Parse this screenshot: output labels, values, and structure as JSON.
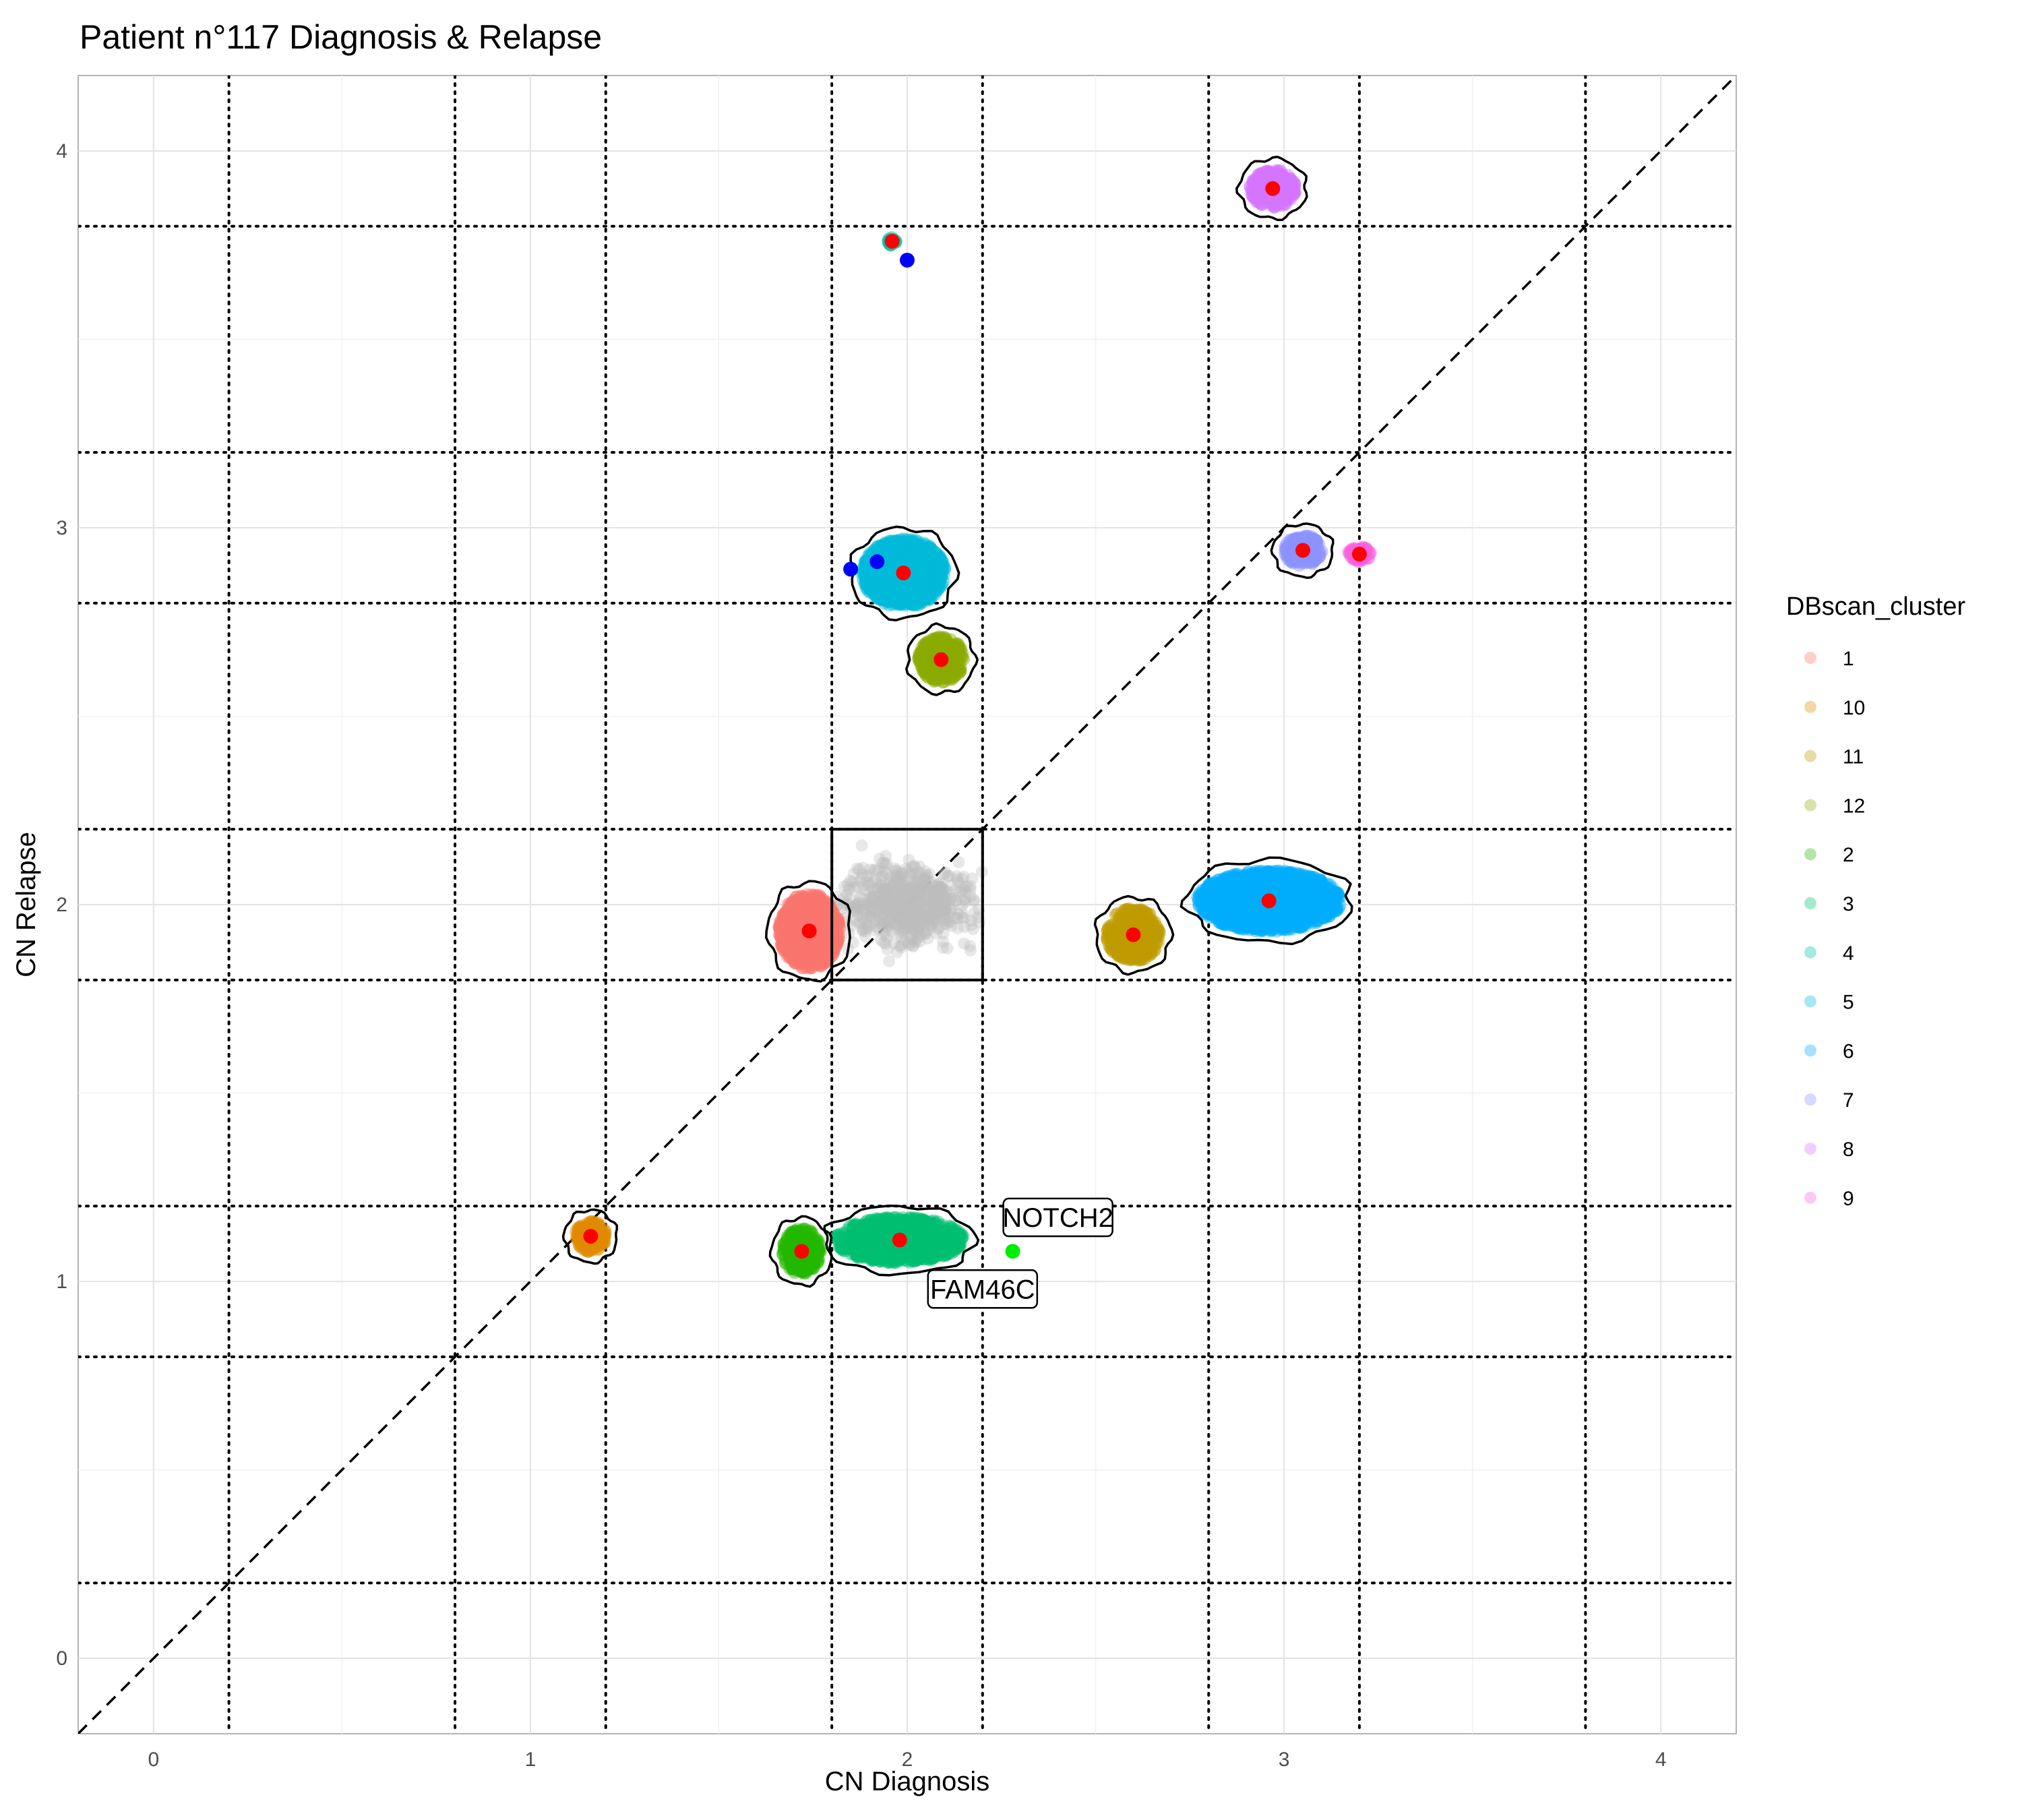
{
  "chart_data": {
    "type": "scatter",
    "title": "Patient n°117 Diagnosis & Relapse",
    "xlabel": "CN Diagnosis",
    "ylabel": "CN Relapse",
    "xlim": [
      -0.2,
      4.2
    ],
    "ylim": [
      -0.2,
      4.2
    ],
    "x_ticks": [
      "0",
      "1",
      "2",
      "3",
      "4"
    ],
    "y_ticks": [
      "0",
      "1",
      "2",
      "3",
      "4"
    ],
    "grid": true,
    "diagonal": "y = x",
    "threshold_lines_x": [
      0.2,
      0.8,
      1.2,
      1.8,
      2.2,
      2.8,
      3.2,
      3.8
    ],
    "threshold_lines_y": [
      0.2,
      0.8,
      1.2,
      1.8,
      2.2,
      2.8,
      3.2,
      3.8
    ],
    "normal_box": {
      "x": [
        1.8,
        2.2
      ],
      "y": [
        1.8,
        2.2
      ]
    },
    "legend_title": "DBscan_cluster",
    "legend_position": "right",
    "clusters": [
      {
        "name": "1",
        "color": "#F8766D",
        "center": [
          1.74,
          1.93
        ],
        "spread": [
          0.08,
          0.1
        ]
      },
      {
        "name": "10",
        "color": "#E18A00",
        "center": [
          1.16,
          1.12
        ],
        "spread": [
          0.04,
          0.04
        ]
      },
      {
        "name": "11",
        "color": "#BE9C00",
        "center": [
          2.6,
          1.92
        ],
        "spread": [
          0.07,
          0.07
        ]
      },
      {
        "name": "12",
        "color": "#8CAB00",
        "center": [
          2.09,
          2.65
        ],
        "spread": [
          0.06,
          0.06
        ]
      },
      {
        "name": "2",
        "color": "#24B700",
        "center": [
          1.72,
          1.08
        ],
        "spread": [
          0.05,
          0.06
        ]
      },
      {
        "name": "3",
        "color": "#00BE70",
        "center": [
          1.98,
          1.11
        ],
        "spread": [
          0.17,
          0.06
        ]
      },
      {
        "name": "4",
        "color": "#00C1AB",
        "center": [
          1.96,
          3.76
        ],
        "spread": [
          0.01,
          0.01
        ]
      },
      {
        "name": "5",
        "color": "#00BBDA",
        "center": [
          1.99,
          2.88
        ],
        "spread": [
          0.11,
          0.09
        ]
      },
      {
        "name": "6",
        "color": "#00ACFC",
        "center": [
          2.96,
          2.01
        ],
        "spread": [
          0.19,
          0.08
        ]
      },
      {
        "name": "7",
        "color": "#8B93FF",
        "center": [
          3.05,
          2.94
        ],
        "spread": [
          0.05,
          0.04
        ]
      },
      {
        "name": "8",
        "color": "#D575FE",
        "center": [
          2.97,
          3.9
        ],
        "spread": [
          0.06,
          0.05
        ]
      },
      {
        "name": "9",
        "color": "#F962DD",
        "center": [
          3.2,
          2.93
        ],
        "spread": [
          0.03,
          0.02
        ]
      }
    ],
    "unclustered_color": "#BEBEBE",
    "blue_points": [
      [
        1.85,
        2.89
      ],
      [
        1.92,
        2.91
      ],
      [
        2.0,
        3.71
      ]
    ],
    "green_point": [
      2.28,
      1.08
    ],
    "annotations": [
      {
        "label": "NOTCH2",
        "x": 2.28,
        "y": 1.08
      },
      {
        "label": "FAM46C",
        "x": 2.28,
        "y": 1.08
      }
    ]
  }
}
